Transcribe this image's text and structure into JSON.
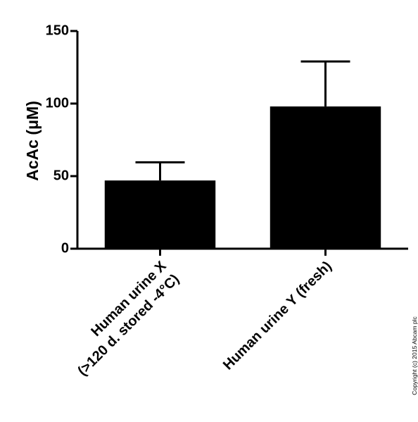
{
  "chart_data": {
    "type": "bar",
    "y_label": "AcAc (μM)",
    "categories": [
      [
        "Human urine X",
        "(>120 d. stored -4°C)"
      ],
      [
        "Human urine Y (fresh)"
      ]
    ],
    "values": [
      47,
      98
    ],
    "errors": [
      12.5,
      31
    ],
    "color": "#000000",
    "ylim": [
      0,
      150
    ],
    "yticks": [
      0,
      50,
      100,
      150
    ],
    "copyright": "Copyright (c) 2015 Abcam plc"
  }
}
